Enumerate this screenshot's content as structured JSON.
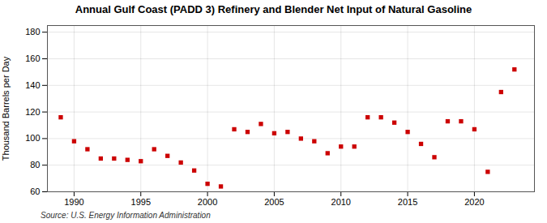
{
  "chart_data": {
    "type": "scatter",
    "title": "Annual Gulf Coast (PADD 3) Refinery and Blender Net Input of Natural Gasoline",
    "ylabel": "Thousand Barrels per Day",
    "source": "Source: U.S. Energy Information Administration",
    "x": [
      1989,
      1990,
      1991,
      1992,
      1993,
      1994,
      1995,
      1996,
      1997,
      1998,
      1999,
      2000,
      2001,
      2002,
      2003,
      2004,
      2005,
      2006,
      2007,
      2008,
      2009,
      2010,
      2011,
      2012,
      2013,
      2014,
      2015,
      2016,
      2017,
      2018,
      2019,
      2020,
      2021,
      2022,
      2023
    ],
    "values": [
      116,
      98,
      92,
      85,
      85,
      84,
      83,
      92,
      87,
      82,
      76,
      66,
      64,
      107,
      105,
      111,
      104,
      105,
      100,
      98,
      89,
      94,
      94,
      116,
      116,
      112,
      105,
      96,
      86,
      113,
      113,
      107,
      75,
      135,
      152
    ],
    "color": "#cc0000",
    "marker": "square",
    "xlim": [
      1988.0,
      2024.5
    ],
    "xticks": [
      1990,
      1995,
      2000,
      2005,
      2010,
      2015,
      2020
    ],
    "ylim": [
      60,
      185
    ],
    "yticks": [
      60,
      80,
      100,
      120,
      140,
      160,
      180
    ],
    "grid": true
  }
}
